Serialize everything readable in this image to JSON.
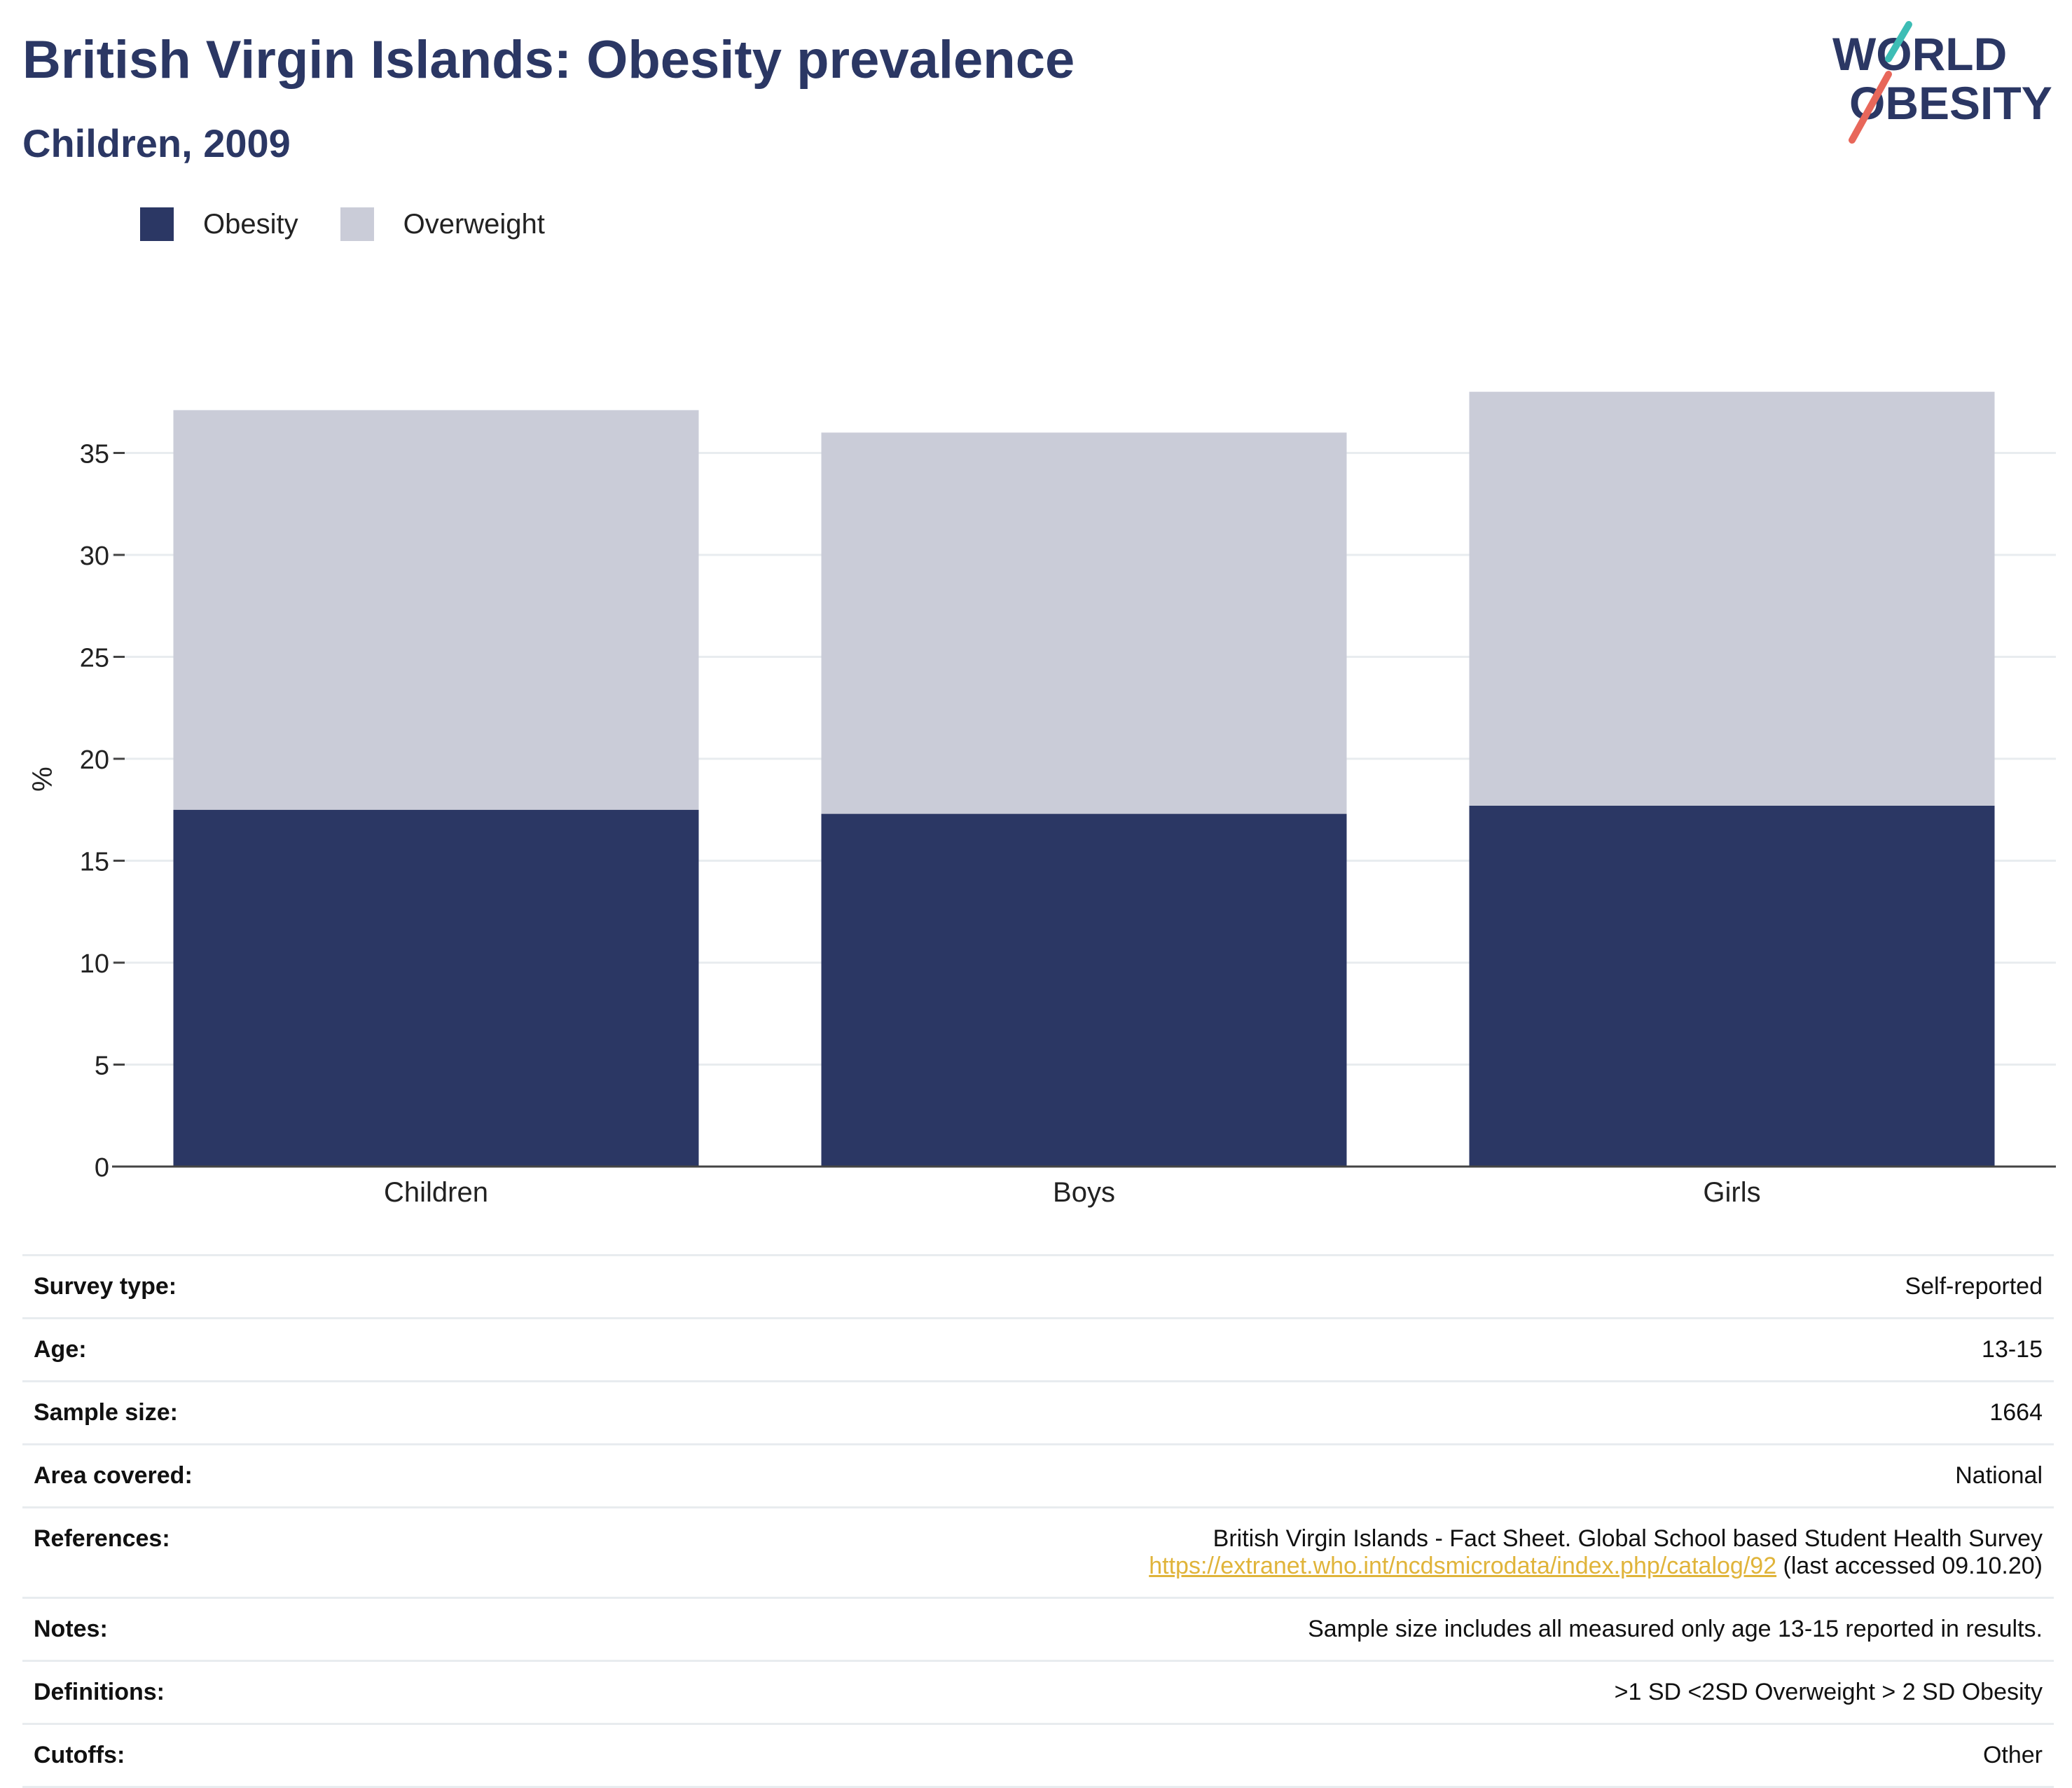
{
  "header": {
    "title": "British Virgin Islands: Obesity prevalence",
    "subtitle": "Children, 2009"
  },
  "logo": {
    "line1": "WORLD",
    "line2": "OBESITY",
    "accent_teal": "#3dbdb5",
    "accent_coral": "#e8675a"
  },
  "colors": {
    "obesity": "#2b3764",
    "overweight": "#caccd8",
    "text": "#2b3764",
    "link": "#e0b43a"
  },
  "chart_data": {
    "type": "bar",
    "stacked": true,
    "categories": [
      "Children",
      "Boys",
      "Girls"
    ],
    "series": [
      {
        "name": "Obesity",
        "color": "#2b3764",
        "values": [
          17.5,
          17.3,
          17.7
        ]
      },
      {
        "name": "Overweight",
        "color": "#caccd8",
        "values": [
          19.6,
          18.7,
          20.3
        ]
      }
    ],
    "ylabel": "%",
    "xlabel": "",
    "ylim": [
      0,
      38
    ],
    "yticks": [
      0,
      5,
      10,
      15,
      20,
      25,
      30,
      35
    ],
    "grid": true,
    "legend": "top-left"
  },
  "info": {
    "rows": [
      {
        "label": "Survey type:",
        "value": "Self-reported"
      },
      {
        "label": "Age:",
        "value": "13-15"
      },
      {
        "label": "Sample size:",
        "value": "1664"
      },
      {
        "label": "Area covered:",
        "value": "National"
      },
      {
        "label": "References:",
        "value": "British Virgin Islands - Fact Sheet. Global School based Student Health Survey",
        "link": "https://extranet.who.int/ncdsmicrodata/index.php/catalog/92",
        "suffix": " (last accessed 09.10.20)"
      },
      {
        "label": "Notes:",
        "value": "Sample size includes all measured only age 13-15 reported in results."
      },
      {
        "label": "Definitions:",
        "value": ">1 SD <2SD Overweight > 2 SD Obesity"
      },
      {
        "label": "Cutoffs:",
        "value": "Other"
      }
    ]
  }
}
